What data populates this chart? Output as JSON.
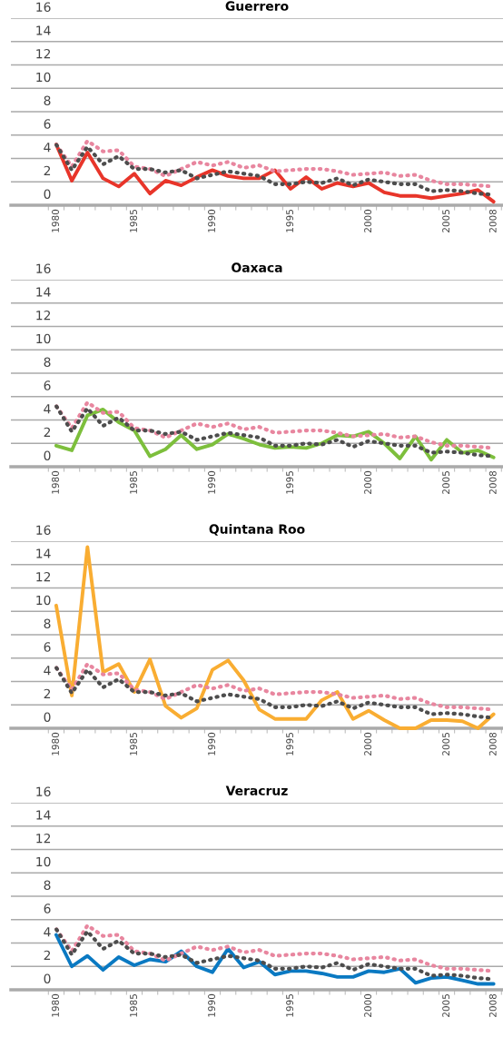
{
  "chart_data": [
    {
      "type": "line",
      "title": "Guerrero",
      "categories": [
        "1980",
        null,
        null,
        null,
        null,
        "1985",
        null,
        null,
        null,
        null,
        "1990",
        null,
        null,
        null,
        null,
        "1995",
        null,
        null,
        null,
        null,
        "2000",
        null,
        null,
        null,
        null,
        "2005",
        null,
        null,
        "2008"
      ],
      "ylim": [
        0,
        16
      ],
      "yticks": [
        0,
        2,
        4,
        6,
        8,
        10,
        12,
        14,
        16
      ],
      "grid": "y",
      "series": [
        {
          "color": "#e8869f",
          "line_style": "dotted",
          "values": [
            5.2,
            3.3,
            5.5,
            4.6,
            4.7,
            3.3,
            3.1,
            2.5,
            3.1,
            3.7,
            3.4,
            3.7,
            3.2,
            3.4,
            2.9,
            3.0,
            3.1,
            3.1,
            2.9,
            2.6,
            2.7,
            2.8,
            2.5,
            2.6,
            2.1,
            1.8,
            1.8,
            1.7,
            1.6
          ]
        },
        {
          "color": "#4d4d4d",
          "line_style": "dotted",
          "values": [
            5.2,
            3.0,
            5.0,
            3.5,
            4.2,
            3.1,
            3.1,
            2.8,
            3.0,
            2.3,
            2.6,
            2.9,
            2.7,
            2.5,
            1.8,
            1.8,
            2.0,
            1.9,
            2.3,
            1.7,
            2.2,
            2.0,
            1.8,
            1.8,
            1.2,
            1.3,
            1.2,
            1.0,
            0.9
          ]
        },
        {
          "color": "#e8352a",
          "line_style": "solid",
          "values": [
            5.2,
            2.1,
            4.5,
            2.3,
            1.6,
            2.7,
            1.0,
            2.1,
            1.7,
            2.4,
            3.0,
            2.5,
            2.3,
            2.3,
            3.0,
            1.4,
            2.4,
            1.4,
            1.9,
            1.6,
            1.9,
            1.1,
            0.8,
            0.8,
            0.6,
            0.8,
            1.0,
            1.3,
            0.3
          ]
        }
      ]
    },
    {
      "type": "line",
      "title": "Oaxaca",
      "categories": [
        "1980",
        null,
        null,
        null,
        null,
        "1985",
        null,
        null,
        null,
        null,
        "1990",
        null,
        null,
        null,
        null,
        "1995",
        null,
        null,
        null,
        null,
        "2000",
        null,
        null,
        null,
        null,
        "2005",
        null,
        null,
        "2008"
      ],
      "ylim": [
        0,
        16
      ],
      "yticks": [
        0,
        2,
        4,
        6,
        8,
        10,
        12,
        14,
        16
      ],
      "grid": "y",
      "series": [
        {
          "color": "#e8869f",
          "line_style": "dotted",
          "values": [
            5.2,
            3.3,
            5.5,
            4.6,
            4.7,
            3.3,
            3.1,
            2.5,
            3.1,
            3.7,
            3.4,
            3.7,
            3.2,
            3.4,
            2.9,
            3.0,
            3.1,
            3.1,
            2.9,
            2.6,
            2.7,
            2.8,
            2.5,
            2.6,
            2.1,
            1.8,
            1.8,
            1.7,
            1.6
          ]
        },
        {
          "color": "#4d4d4d",
          "line_style": "dotted",
          "values": [
            5.2,
            3.0,
            5.0,
            3.5,
            4.2,
            3.1,
            3.1,
            2.8,
            3.0,
            2.3,
            2.6,
            2.9,
            2.7,
            2.5,
            1.8,
            1.8,
            2.0,
            1.9,
            2.3,
            1.7,
            2.2,
            2.0,
            1.8,
            1.8,
            1.2,
            1.3,
            1.2,
            1.0,
            0.9
          ]
        },
        {
          "color": "#7dbf3c",
          "line_style": "solid",
          "values": [
            1.8,
            1.4,
            4.4,
            4.9,
            3.8,
            3.1,
            0.9,
            1.5,
            2.7,
            1.5,
            1.9,
            2.8,
            2.4,
            1.9,
            1.6,
            1.7,
            1.6,
            2.0,
            2.7,
            2.6,
            3.0,
            2.0,
            0.7,
            2.6,
            0.6,
            2.3,
            1.2,
            1.4,
            0.8
          ]
        }
      ]
    },
    {
      "type": "line",
      "title": "Quintana Roo",
      "categories": [
        "1980",
        null,
        null,
        null,
        null,
        "1985",
        null,
        null,
        null,
        null,
        "1990",
        null,
        null,
        null,
        null,
        "1995",
        null,
        null,
        null,
        null,
        "2000",
        null,
        null,
        null,
        null,
        "2005",
        null,
        null,
        "2008"
      ],
      "ylim": [
        0,
        16
      ],
      "yticks": [
        0,
        2,
        4,
        6,
        8,
        10,
        12,
        14,
        16
      ],
      "grid": "y",
      "series": [
        {
          "color": "#e8869f",
          "line_style": "dotted",
          "values": [
            5.2,
            3.3,
            5.5,
            4.6,
            4.7,
            3.3,
            3.1,
            2.5,
            3.1,
            3.7,
            3.4,
            3.7,
            3.2,
            3.4,
            2.9,
            3.0,
            3.1,
            3.1,
            2.9,
            2.6,
            2.7,
            2.8,
            2.5,
            2.6,
            2.1,
            1.8,
            1.8,
            1.7,
            1.6
          ]
        },
        {
          "color": "#4d4d4d",
          "line_style": "dotted",
          "values": [
            5.2,
            3.0,
            5.0,
            3.5,
            4.2,
            3.1,
            3.1,
            2.8,
            3.0,
            2.3,
            2.6,
            2.9,
            2.7,
            2.5,
            1.8,
            1.8,
            2.0,
            1.9,
            2.3,
            1.7,
            2.2,
            2.0,
            1.8,
            1.8,
            1.2,
            1.3,
            1.2,
            1.0,
            0.9
          ]
        },
        {
          "color": "#f9ad32",
          "line_style": "solid",
          "values": [
            10.5,
            2.8,
            15.5,
            4.8,
            5.5,
            3.1,
            5.9,
            1.9,
            0.9,
            1.7,
            5.0,
            5.8,
            4.1,
            1.6,
            0.8,
            0.8,
            0.8,
            2.4,
            3.1,
            0.8,
            1.5,
            0.7,
            0.0,
            0.0,
            0.7,
            0.7,
            0.6,
            0.0,
            1.2
          ]
        }
      ]
    },
    {
      "type": "line",
      "title": "Veracruz",
      "categories": [
        "1980",
        null,
        null,
        null,
        null,
        "1985",
        null,
        null,
        null,
        null,
        "1990",
        null,
        null,
        null,
        null,
        "1995",
        null,
        null,
        null,
        null,
        "2000",
        null,
        null,
        null,
        null,
        "2005",
        null,
        null,
        "2008"
      ],
      "ylim": [
        0,
        16
      ],
      "yticks": [
        0,
        2,
        4,
        6,
        8,
        10,
        12,
        14,
        16
      ],
      "grid": "y",
      "series": [
        {
          "color": "#e8869f",
          "line_style": "dotted",
          "values": [
            5.2,
            3.3,
            5.5,
            4.6,
            4.7,
            3.3,
            3.1,
            2.5,
            3.1,
            3.7,
            3.4,
            3.7,
            3.2,
            3.4,
            2.9,
            3.0,
            3.1,
            3.1,
            2.9,
            2.6,
            2.7,
            2.8,
            2.5,
            2.6,
            2.1,
            1.8,
            1.8,
            1.7,
            1.6
          ]
        },
        {
          "color": "#4d4d4d",
          "line_style": "dotted",
          "values": [
            5.2,
            3.0,
            5.0,
            3.5,
            4.2,
            3.1,
            3.1,
            2.8,
            3.0,
            2.3,
            2.6,
            2.9,
            2.7,
            2.5,
            1.8,
            1.8,
            2.0,
            1.9,
            2.3,
            1.7,
            2.2,
            2.0,
            1.8,
            1.8,
            1.2,
            1.3,
            1.2,
            1.0,
            0.9
          ]
        },
        {
          "color": "#0a79c2",
          "line_style": "solid",
          "values": [
            4.7,
            2.0,
            2.9,
            1.7,
            2.8,
            2.1,
            2.6,
            2.4,
            3.3,
            2.0,
            1.5,
            3.5,
            1.9,
            2.4,
            1.3,
            1.6,
            1.6,
            1.4,
            1.1,
            1.1,
            1.6,
            1.5,
            1.8,
            0.6,
            1.0,
            1.1,
            0.8,
            0.5,
            0.5
          ]
        }
      ]
    }
  ]
}
